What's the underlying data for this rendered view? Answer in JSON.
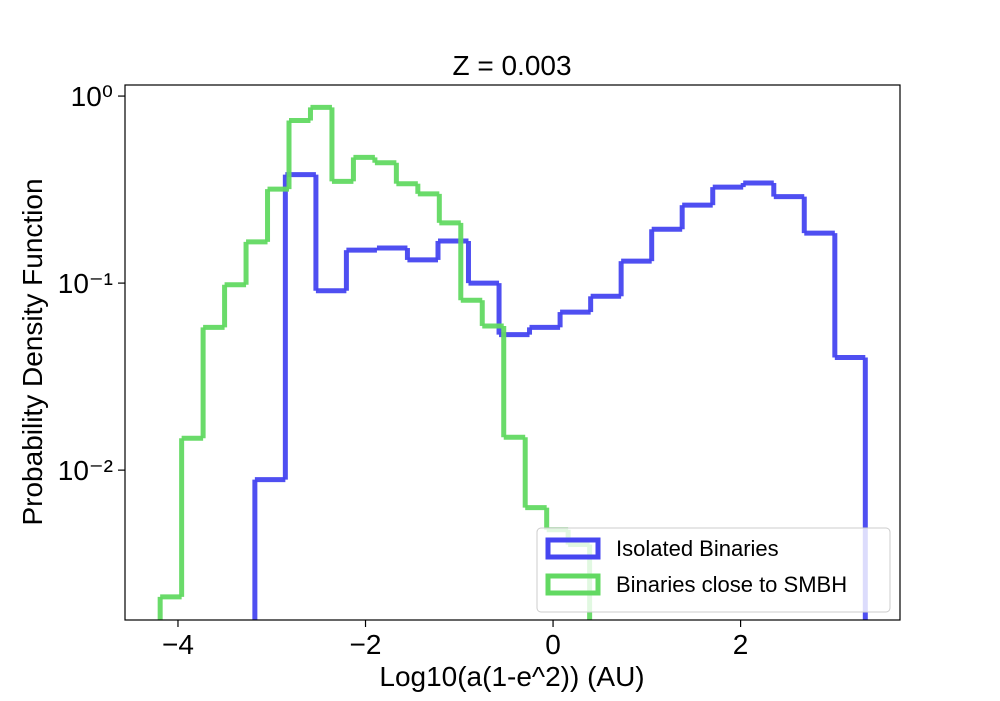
{
  "chart_data": {
    "type": "histogram",
    "title": "Z = 0.003",
    "x_label": "Log10(a(1-e^2)) (AU)",
    "y_label": "Probability Density Function",
    "xlim": [
      -4.565,
      3.7
    ],
    "ylim": [
      0.00158,
      1.146
    ],
    "y_scale": "log",
    "xticks": [
      {
        "value": -4,
        "label": "−4"
      },
      {
        "value": -2,
        "label": "−2"
      },
      0,
      2
    ],
    "yticks": [
      {
        "value": 0.01,
        "label": "10⁻²"
      },
      {
        "value": 0.1,
        "label": "10⁻¹"
      },
      {
        "value": 1,
        "label": "10⁰"
      }
    ],
    "grid": false,
    "legend": "lower right",
    "series": [
      {
        "name": "Isolated Binaries",
        "color": "#4646f0",
        "bins": [
          -3.18,
          -2.855,
          -2.529,
          -2.204,
          -1.878,
          -1.553,
          -1.227,
          -0.902,
          -0.576,
          -0.251,
          0.075,
          0.401,
          0.726,
          1.052,
          1.377,
          1.703,
          2.028,
          2.354,
          2.679,
          3.005,
          3.33
        ],
        "values": [
          0.0089,
          0.38,
          0.091,
          0.15,
          0.154,
          0.133,
          0.168,
          0.1,
          0.053,
          0.058,
          0.07,
          0.085,
          0.131,
          0.194,
          0.261,
          0.326,
          0.343,
          0.29,
          0.185,
          0.04
        ]
      },
      {
        "name": "Binaries close to SMBH",
        "color": "#62d962",
        "bins": [
          -4.19,
          -3.961,
          -3.732,
          -3.503,
          -3.274,
          -3.045,
          -2.816,
          -2.587,
          -2.358,
          -2.129,
          -1.9,
          -1.671,
          -1.442,
          -1.213,
          -0.984,
          -0.755,
          -0.526,
          -0.297,
          -0.068,
          0.161,
          0.39
        ],
        "values": [
          0.0021,
          0.0148,
          0.058,
          0.098,
          0.166,
          0.318,
          0.74,
          0.87,
          0.35,
          0.47,
          0.44,
          0.34,
          0.3,
          0.21,
          0.081,
          0.059,
          0.015,
          0.0063,
          0.0048,
          0.004
        ]
      }
    ]
  }
}
